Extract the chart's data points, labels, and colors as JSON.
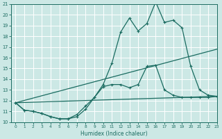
{
  "xlabel": "Humidex (Indice chaleur)",
  "x_values": [
    0,
    1,
    2,
    3,
    4,
    5,
    6,
    7,
    8,
    9,
    10,
    11,
    12,
    13,
    14,
    15,
    16,
    17,
    18,
    19,
    20,
    21,
    22,
    23
  ],
  "line1": [
    11.8,
    11.1,
    11.0,
    10.8,
    10.5,
    10.3,
    10.3,
    10.5,
    11.2,
    12.3,
    13.5,
    15.5,
    18.4,
    19.7,
    18.5,
    19.2,
    21.2,
    19.3,
    19.5,
    18.8,
    15.2,
    13.0,
    12.5,
    12.4
  ],
  "line2": [
    11.8,
    11.1,
    11.0,
    10.8,
    10.5,
    10.3,
    10.3,
    10.7,
    11.5,
    12.3,
    13.3,
    13.5,
    13.5,
    13.2,
    13.5,
    15.2,
    15.3,
    13.0,
    12.5,
    12.3,
    12.3,
    12.3,
    12.3,
    12.4
  ],
  "line3_x": [
    0,
    23
  ],
  "line3_y": [
    11.8,
    12.4
  ],
  "line4_x": [
    0,
    23
  ],
  "line4_y": [
    11.8,
    16.8
  ],
  "ylim": [
    10,
    21
  ],
  "xlim": [
    -0.5,
    23
  ],
  "yticks": [
    10,
    11,
    12,
    13,
    14,
    15,
    16,
    17,
    18,
    19,
    20,
    21
  ],
  "xticks": [
    0,
    1,
    2,
    3,
    4,
    5,
    6,
    7,
    8,
    9,
    10,
    11,
    12,
    13,
    14,
    15,
    16,
    17,
    18,
    19,
    20,
    21,
    22,
    23
  ],
  "line_color": "#1a6b60",
  "bg_color": "#cce8e5",
  "grid_color": "#ffffff",
  "marker": "+"
}
